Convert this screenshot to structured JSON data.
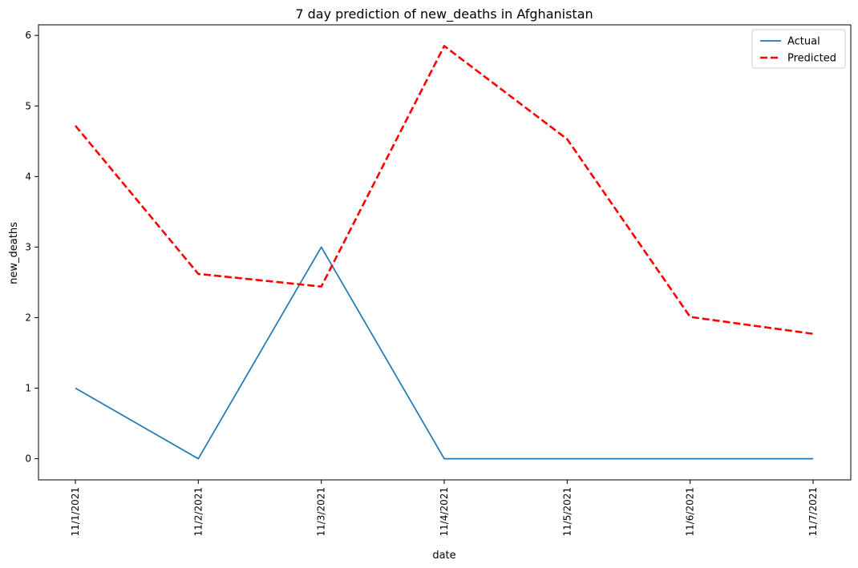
{
  "chart_data": {
    "type": "line",
    "title": "7 day prediction of new_deaths in Afghanistan",
    "xlabel": "date",
    "ylabel": "new_deaths",
    "x": [
      "11/1/2021",
      "11/2/2021",
      "11/3/2021",
      "11/4/2021",
      "11/5/2021",
      "11/6/2021",
      "11/7/2021"
    ],
    "yticks": [
      "0",
      "1",
      "2",
      "3",
      "4",
      "5",
      "6"
    ],
    "ylim": [
      -0.3,
      6.15
    ],
    "grid": false,
    "legend_position": "upper right",
    "series": [
      {
        "name": "Actual",
        "values": [
          1,
          0,
          3,
          0,
          0,
          0,
          0
        ],
        "color": "#1f77b4",
        "style": "solid"
      },
      {
        "name": "Predicted",
        "values": [
          4.72,
          2.62,
          2.44,
          5.85,
          4.53,
          2.01,
          1.77
        ],
        "color": "#ff0000",
        "style": "dashed"
      }
    ]
  }
}
